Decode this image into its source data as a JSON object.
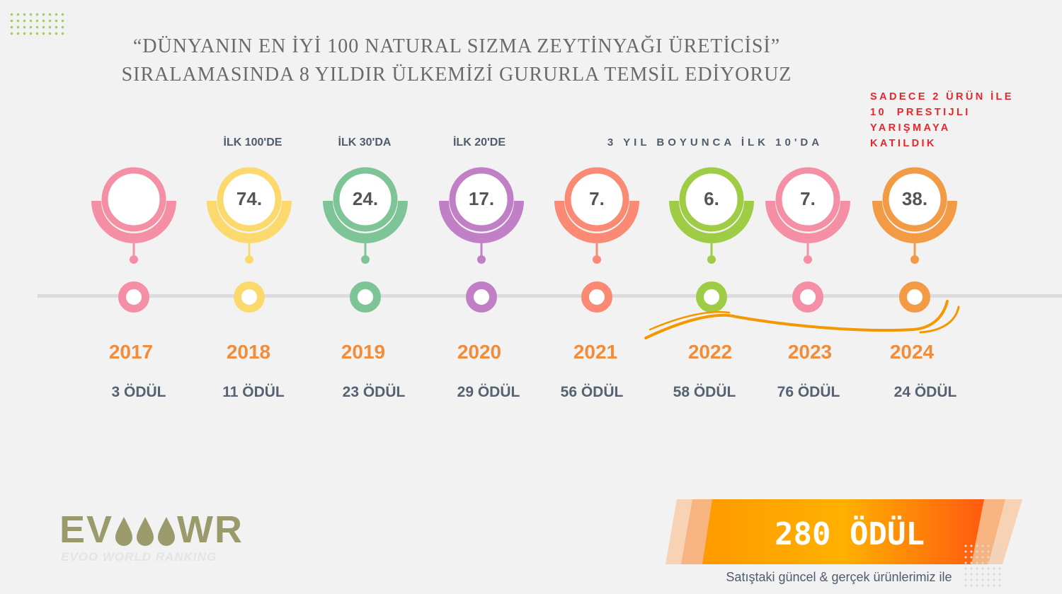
{
  "header": {
    "line1": "“DÜNYANIN EN İYİ 100 NATURAL SIZMA ZEYTİNYAĞI ÜRETİCİSİ”",
    "line2": "SIRALAMASINDA 8 YILDIR ÜLKEMİZİ GURURLA TEMSİL EDİYORUZ"
  },
  "rank_labels": {
    "top100": "İLK 100'DE",
    "top30": "İLK 30'DA",
    "top20": "İLK 20'DE",
    "top10": "3 YIL BOYUNCA İLK 10'DA"
  },
  "note": {
    "line1": "SADECE 2 ÜRÜN İLE",
    "line2": "10  PRESTIJLI",
    "line3": "YARIŞMAYA",
    "line4": "KATILDIK"
  },
  "timeline": [
    {
      "year": "2017",
      "rank": "",
      "awards": "3 ÖDÜL",
      "color": "#f48fa5"
    },
    {
      "year": "2018",
      "rank": "74.",
      "awards": "11 ÖDÜL",
      "color": "#fbd96c"
    },
    {
      "year": "2019",
      "rank": "24.",
      "awards": "23 ÖDÜL",
      "color": "#7dc596"
    },
    {
      "year": "2020",
      "rank": "17.",
      "awards": "29 ÖDÜL",
      "color": "#c17fc6"
    },
    {
      "year": "2021",
      "rank": "7.",
      "awards": "56 ÖDÜL",
      "color": "#fa8a74"
    },
    {
      "year": "2022",
      "rank": "6.",
      "awards": "58 ÖDÜL",
      "color": "#9fcc45"
    },
    {
      "year": "2023",
      "rank": "7.",
      "awards": "76 ÖDÜL",
      "color": "#f48fa5"
    },
    {
      "year": "2024",
      "rank": "38.",
      "awards": "24 ÖDÜL",
      "color": "#f39a45"
    }
  ],
  "logo": {
    "main_left": "EV",
    "main_right": "WR",
    "sub": "EVOO WORLD RANKING"
  },
  "total": {
    "label": "280 ÖDÜL",
    "caption": "Satıştaki güncel & gerçek ürünlerimiz ile"
  },
  "colors": {
    "year_text": "#f08c3a",
    "note_text": "#e8262a",
    "banner": "#ff8a00",
    "swoosh": "#f39800"
  }
}
